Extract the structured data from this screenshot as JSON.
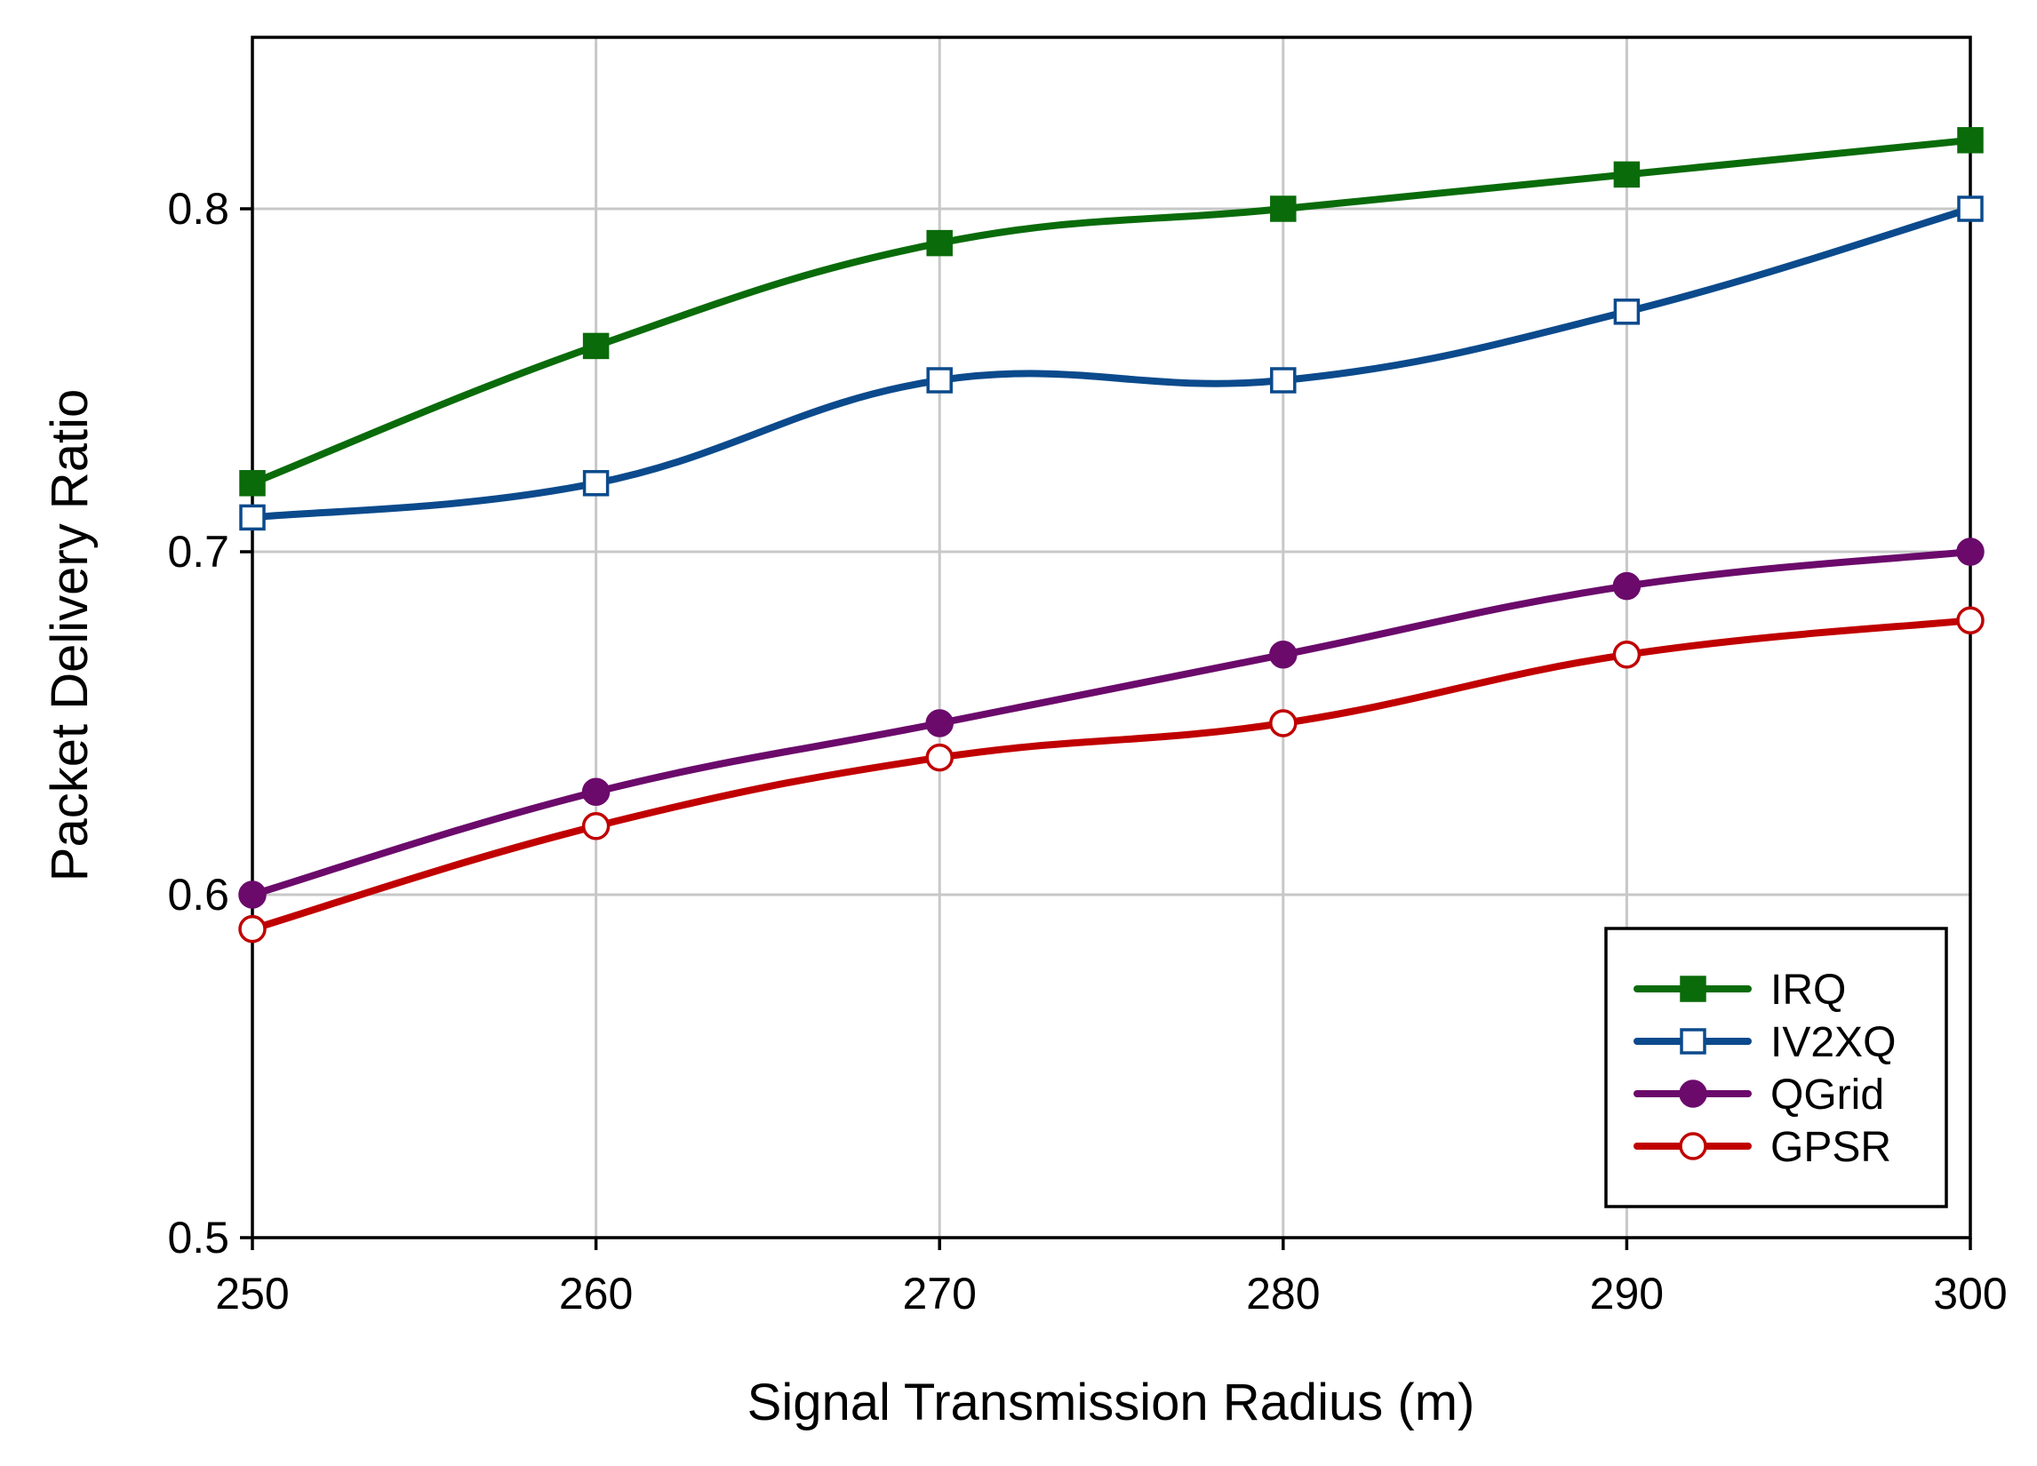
{
  "chart_data": {
    "type": "line",
    "title": "",
    "xlabel": "Signal Transmission Radius (m)",
    "ylabel": "Packet Delivery Ratio",
    "x": [
      250,
      260,
      270,
      280,
      290,
      300
    ],
    "x_tick_labels": [
      "250",
      "260",
      "270",
      "280",
      "290",
      "300"
    ],
    "y_ticks": [
      0.5,
      0.6,
      0.7,
      0.8
    ],
    "y_tick_labels": [
      "0.5",
      "0.6",
      "0.7",
      "0.8"
    ],
    "xlim": [
      250,
      300
    ],
    "ylim": [
      0.5,
      0.85
    ],
    "grid": true,
    "legend_position": "bottom-right",
    "series": [
      {
        "name": "IRQ",
        "values": [
          0.72,
          0.76,
          0.79,
          0.8,
          0.81,
          0.82
        ],
        "color": "#0a6b0a",
        "marker": "square",
        "filled": true
      },
      {
        "name": "IV2XQ",
        "values": [
          0.71,
          0.72,
          0.75,
          0.75,
          0.77,
          0.8
        ],
        "color": "#0b4a8c",
        "marker": "square",
        "filled": false
      },
      {
        "name": "QGrid",
        "values": [
          0.6,
          0.63,
          0.65,
          0.67,
          0.69,
          0.7
        ],
        "color": "#6b0a6b",
        "marker": "circle",
        "filled": true
      },
      {
        "name": "GPSR",
        "values": [
          0.59,
          0.62,
          0.64,
          0.65,
          0.67,
          0.68
        ],
        "color": "#c00000",
        "marker": "circle",
        "filled": false
      }
    ]
  }
}
